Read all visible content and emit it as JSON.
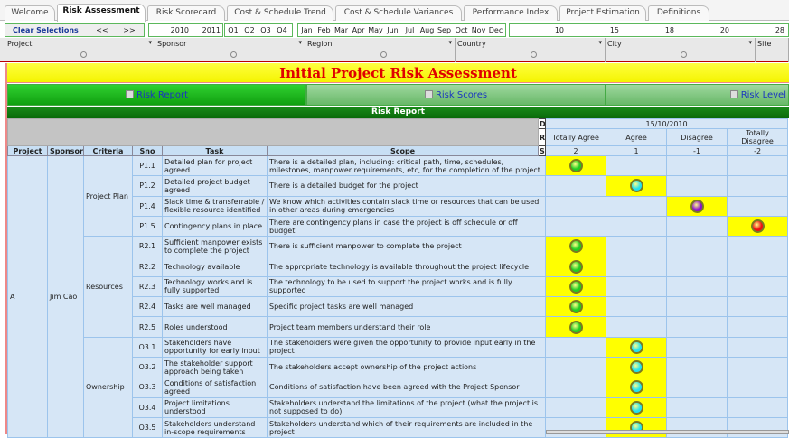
{
  "tabs": [
    "Welcome",
    "Risk Assessment",
    "Risk Scorecard",
    "Cost & Schedule Trend",
    "Cost & Schedule Variances",
    "Performance Index",
    "Project Estimation",
    "Definitions"
  ],
  "active_tab": 1,
  "selections": {
    "clear": "Clear Selections",
    "prev": "<<",
    "next": ">>",
    "years": [
      "2010",
      "2011"
    ],
    "quarters": [
      "Q1",
      "Q2",
      "Q3",
      "Q4"
    ],
    "months": [
      "Jan",
      "Feb",
      "Mar",
      "Apr",
      "May",
      "Jun",
      "Jul",
      "Aug",
      "Sep",
      "Oct",
      "Nov",
      "Dec"
    ],
    "days": [
      "10",
      "15",
      "18",
      "20",
      "28"
    ]
  },
  "filters": [
    {
      "label": "Project",
      "value": "0"
    },
    {
      "label": "Sponsor",
      "value": "0"
    },
    {
      "label": "Region",
      "value": "0"
    },
    {
      "label": "Country",
      "value": "0"
    },
    {
      "label": "City",
      "value": "0"
    },
    {
      "label": "Site",
      "value": "0"
    }
  ],
  "title": "Initial Project Risk Assessment",
  "nav": [
    "Risk Report",
    "Risk Scores",
    "Risk Level"
  ],
  "report_title": "Risk Report",
  "dim_labels": {
    "d": "D",
    "r": "R",
    "s": "S"
  },
  "date": "15/10/2010",
  "responses": [
    {
      "label": "Totally Agree",
      "score": "2",
      "color": "#22cc22"
    },
    {
      "label": "Agree",
      "score": "1",
      "color": "#22e0f0"
    },
    {
      "label": "Disagree",
      "score": "-1",
      "color": "#8a10d0"
    },
    {
      "label": "Totally Disagree",
      "score": "-2",
      "color": "#ee1010"
    }
  ],
  "columns": [
    "Project",
    "Sponsor",
    "Criteria",
    "Sno",
    "Task",
    "Scope"
  ],
  "project": "A",
  "sponsor": "Jim Cao",
  "groups": [
    {
      "criteria": "Project Plan",
      "rows": [
        {
          "sno": "P1.1",
          "task": "Detailed plan for project agreed",
          "scope": "There is a detailed plan, including:  critical path,  time,  schedules, milestones, manpower requirements, etc, for the completion of the project",
          "response": 0
        },
        {
          "sno": "P1.2",
          "task": "Detailed project budget agreed",
          "scope": "There is a detailed budget for the project",
          "response": 1
        },
        {
          "sno": "P1.4",
          "task": "Slack time & transferrable / flexible resource identified",
          "scope": "We know which activities contain slack time or  resources that can be used in other areas during emergencies",
          "response": 2
        },
        {
          "sno": "P1.5",
          "task": "Contingency plans in place",
          "scope": "There are contingency plans in case the project is off schedule or off budget",
          "response": 3
        }
      ]
    },
    {
      "criteria": "Resources",
      "rows": [
        {
          "sno": "R2.1",
          "task": "Sufficient manpower exists to complete the project",
          "scope": "There is sufficient manpower to complete the project",
          "response": 0
        },
        {
          "sno": "R2.2",
          "task": "Technology available",
          "scope": "The appropriate technology is available throughout the project lifecycle",
          "response": 0
        },
        {
          "sno": "R2.3",
          "task": "Technology works and is fully supported",
          "scope": "The technology to be used to support the project works and is fully supported",
          "response": 0
        },
        {
          "sno": "R2.4",
          "task": "Tasks are well managed",
          "scope": "Specific project tasks are well managed",
          "response": 0
        },
        {
          "sno": "R2.5",
          "task": "Roles understood",
          "scope": "Project team members understand their role",
          "response": 0
        }
      ]
    },
    {
      "criteria": "Ownership",
      "rows": [
        {
          "sno": "O3.1",
          "task": "Stakeholders have opportunity for early input",
          "scope": "The stakeholders were given the opportunity to provide input early in the project",
          "response": 1
        },
        {
          "sno": "O3.2",
          "task": "The stakeholder support approach being taken",
          "scope": "The stakeholders accept ownership of the project actions",
          "response": 1
        },
        {
          "sno": "O3.3",
          "task": "Conditions of satisfaction agreed",
          "scope": "Conditions of satisfaction have been agreed with the Project Sponsor",
          "response": 1
        },
        {
          "sno": "O3.4",
          "task": "Project limitations understood",
          "scope": "Stakeholders understand the limitations of the project (what the project is not supposed to do)",
          "response": 1
        },
        {
          "sno": "O3.5",
          "task": "Stakeholders understand in-scope requirements",
          "scope": "Stakeholders understand which of their requirements are included in the project",
          "response": 1
        }
      ]
    }
  ]
}
